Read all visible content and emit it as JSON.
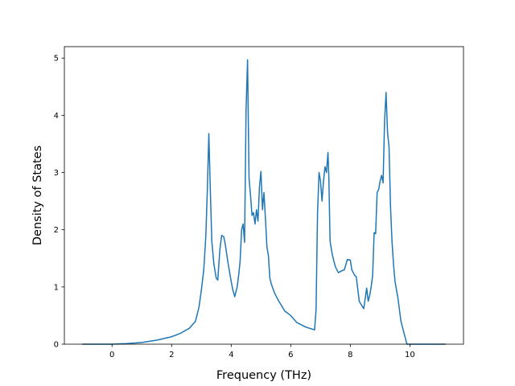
{
  "chart_data": {
    "type": "line",
    "title": "",
    "xlabel": "Frequency (THz)",
    "ylabel": "Density of States",
    "xlim": [
      -1.6,
      11.8
    ],
    "ylim": [
      0,
      5.2
    ],
    "xticks": [
      0,
      2,
      4,
      6,
      8,
      10
    ],
    "yticks": [
      0,
      1,
      2,
      3,
      4,
      5
    ],
    "grid": false,
    "legend": "none",
    "series": [
      {
        "color": "#1f77b4",
        "x": [
          -1.0,
          0.0,
          0.5,
          1.0,
          1.5,
          2.0,
          2.3,
          2.6,
          2.8,
          2.92,
          3.0,
          3.08,
          3.15,
          3.2,
          3.25,
          3.3,
          3.35,
          3.42,
          3.5,
          3.55,
          3.62,
          3.68,
          3.75,
          3.8,
          3.9,
          4.0,
          4.05,
          4.12,
          4.2,
          4.25,
          4.3,
          4.35,
          4.4,
          4.45,
          4.5,
          4.55,
          4.6,
          4.65,
          4.7,
          4.75,
          4.8,
          4.85,
          4.9,
          4.95,
          5.0,
          5.05,
          5.1,
          5.15,
          5.2,
          5.25,
          5.3,
          5.35,
          5.45,
          5.6,
          5.8,
          6.0,
          6.2,
          6.5,
          6.8,
          6.85,
          6.9,
          6.95,
          7.0,
          7.05,
          7.1,
          7.15,
          7.2,
          7.25,
          7.28,
          7.32,
          7.4,
          7.5,
          7.6,
          7.7,
          7.8,
          7.9,
          8.0,
          8.05,
          8.1,
          8.15,
          8.2,
          8.3,
          8.45,
          8.55,
          8.6,
          8.65,
          8.7,
          8.75,
          8.8,
          8.85,
          8.9,
          8.95,
          9.0,
          9.05,
          9.1,
          9.15,
          9.2,
          9.25,
          9.3,
          9.35,
          9.4,
          9.45,
          9.5,
          9.55,
          9.6,
          9.65,
          9.7,
          9.8,
          9.9,
          10.0,
          10.1,
          10.15,
          10.2,
          11.2
        ],
        "y": [
          0.0,
          0.0,
          0.01,
          0.03,
          0.07,
          0.13,
          0.19,
          0.28,
          0.4,
          0.65,
          0.95,
          1.3,
          1.9,
          2.7,
          3.68,
          2.7,
          1.8,
          1.4,
          1.15,
          1.12,
          1.65,
          1.9,
          1.88,
          1.75,
          1.4,
          1.1,
          0.96,
          0.83,
          1.0,
          1.2,
          1.45,
          2.0,
          2.1,
          1.78,
          4.1,
          4.97,
          2.9,
          2.6,
          2.25,
          2.3,
          2.1,
          2.35,
          2.15,
          2.75,
          3.02,
          2.35,
          2.65,
          2.2,
          1.7,
          1.55,
          1.15,
          1.05,
          0.9,
          0.75,
          0.58,
          0.5,
          0.38,
          0.3,
          0.25,
          0.6,
          2.3,
          3.0,
          2.85,
          2.5,
          2.85,
          3.1,
          3.0,
          3.35,
          2.9,
          1.8,
          1.55,
          1.35,
          1.25,
          1.28,
          1.3,
          1.48,
          1.47,
          1.3,
          1.25,
          1.2,
          1.18,
          0.75,
          0.62,
          0.98,
          0.75,
          0.85,
          1.0,
          1.2,
          1.95,
          1.93,
          2.65,
          2.7,
          2.85,
          2.95,
          2.82,
          3.9,
          4.4,
          3.7,
          3.45,
          2.4,
          1.8,
          1.4,
          1.1,
          0.95,
          0.8,
          0.6,
          0.4,
          0.2,
          0.0,
          0.0,
          0.0,
          0.0,
          0.0,
          0.0
        ]
      }
    ]
  }
}
